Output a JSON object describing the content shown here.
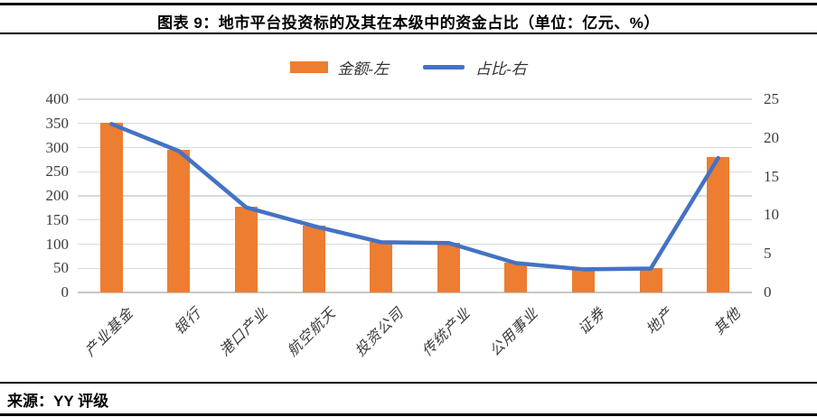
{
  "title": "图表 9：地市平台投资标的及其在本级中的资金占比（单位：亿元、%）",
  "source": "来源：YY 评级",
  "legend": [
    {
      "label": "金额-左",
      "color": "#ED7D31",
      "type": "bar"
    },
    {
      "label": "占比-右",
      "color": "#4472C4",
      "type": "line"
    }
  ],
  "colors": {
    "bar": "#ED7D31",
    "line": "#4472C4",
    "gridline": "#D9D9D9",
    "axis_text": "#3B3B3B",
    "frame": "#000000"
  },
  "chart_data": {
    "type": "bar",
    "title": "图表 9：地市平台投资标的及其在本级中的资金占比（单位：亿元、%）",
    "categories": [
      "产业基金",
      "银行",
      "港口产业",
      "航空航天",
      "投资公司",
      "传统产业",
      "公用事业",
      "证券",
      "地产",
      "其他"
    ],
    "series": [
      {
        "name": "金额-左",
        "type": "bar",
        "axis": "left",
        "color": "#ED7D31",
        "values": [
          352,
          295,
          178,
          138,
          105,
          103,
          62,
          48,
          50,
          280
        ]
      },
      {
        "name": "占比-右",
        "type": "line",
        "axis": "right",
        "color": "#4472C4",
        "values": [
          21.8,
          18.3,
          11.0,
          8.6,
          6.5,
          6.4,
          3.8,
          3.0,
          3.1,
          17.4
        ]
      }
    ],
    "left_axis": {
      "min": 0,
      "max": 400,
      "step": 50,
      "ticks": [
        0,
        50,
        100,
        150,
        200,
        250,
        300,
        350,
        400
      ]
    },
    "right_axis": {
      "min": 0,
      "max": 25,
      "step": 5,
      "ticks": [
        0,
        5,
        10,
        15,
        20,
        25
      ]
    },
    "grid": true,
    "legend_position": "top",
    "units": "亿元、%"
  }
}
